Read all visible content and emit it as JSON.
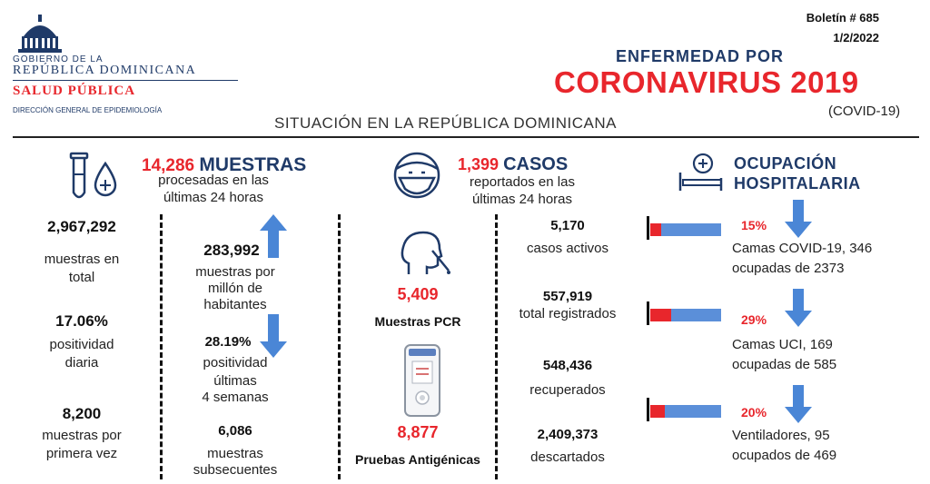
{
  "header": {
    "gov_line1": "GOBIERNO DE LA",
    "gov_line2": "REPÚBLICA DOMINICANA",
    "ministry": "SALUD PÚBLICA",
    "department": "DIRECCIÓN GENERAL DE EPIDEMIOLOGÍA",
    "bulletin": "Boletín # 685",
    "date": "1/2/2022",
    "title_small": "ENFERMEDAD POR",
    "title_big": "CORONAVIRUS 2019",
    "title_sub": "(COVID-19)",
    "situation": "SITUACIÓN EN LA REPÚBLICA DOMINICANA"
  },
  "samples": {
    "count": "14,286",
    "title": "MUESTRAS",
    "subtitle_1": "procesadas en las",
    "subtitle_2": "últimas 24 horas",
    "total_value": "2,967,292",
    "total_label_1": "muestras en",
    "total_label_2": "total",
    "per_million_value": "283,992",
    "per_million_label_1": "muestras por",
    "per_million_label_2": "millón de",
    "per_million_label_3": "habitantes",
    "daily_pos_value": "17.06%",
    "daily_pos_label_1": "positividad",
    "daily_pos_label_2": "diaria",
    "pos4w_value": "28.19%",
    "pos4w_label_1": "positividad",
    "pos4w_label_2": "últimas",
    "pos4w_label_3": "4 semanas",
    "first_value": "8,200",
    "first_label_1": "muestras por",
    "first_label_2": "primera vez",
    "subsequent_value": "6,086",
    "subsequent_label_1": "muestras",
    "subsequent_label_2": "subsecuentes"
  },
  "cases": {
    "count": "1,399",
    "title": "CASOS",
    "subtitle_1": "reportados en las",
    "subtitle_2": "últimas 24 horas",
    "pcr_value": "5,409",
    "pcr_label": "Muestras PCR",
    "antigen_value": "8,877",
    "antigen_label": "Pruebas Antigénicas",
    "active_value": "5,170",
    "active_label": "casos activos",
    "registered_value": "557,919",
    "registered_label": "total registrados",
    "recovered_value": "548,436",
    "recovered_label": "recuperados",
    "discarded_value": "2,409,373",
    "discarded_label": "descartados"
  },
  "hospital": {
    "title_1": "OCUPACIÓN",
    "title_2": "HOSPITALARIA",
    "items": [
      {
        "pct": "15%",
        "fraction": 0.15,
        "label_1": "Camas COVID-19,  346",
        "label_2": "ocupadas de 2373"
      },
      {
        "pct": "29%",
        "fraction": 0.29,
        "label_1": "Camas UCI,  169",
        "label_2": "ocupadas de 585"
      },
      {
        "pct": "20%",
        "fraction": 0.2,
        "label_1": "Ventiladores, 95",
        "label_2": "ocupados de 469"
      }
    ]
  },
  "colors": {
    "navy": "#1f3a68",
    "red": "#e8262c",
    "bar_blue": "#5b8fd9",
    "arrow_blue": "#4a86d6"
  }
}
